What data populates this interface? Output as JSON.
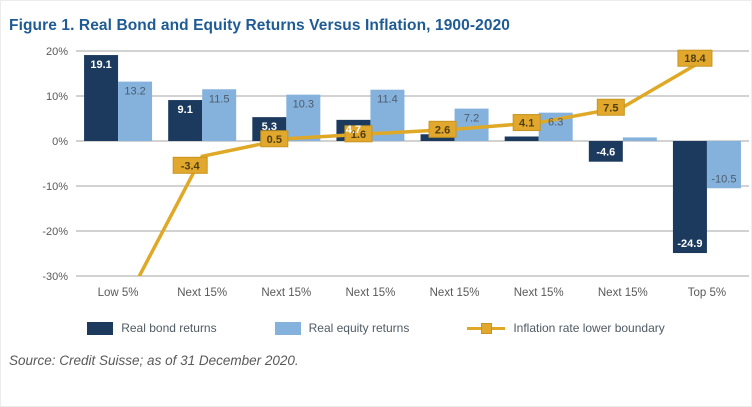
{
  "page": {
    "source_note": "Source: Credit Suisse; as of 31 December 2020.",
    "colors": {
      "title": "#1e5b94",
      "bond": "#1b3a5e",
      "equity": "#85b2dc",
      "inflation_line": "#dfa927",
      "inflation_label_fill": "#e2a82e",
      "inflation_label_border": "#c6951f",
      "inflation_label_text": "#4f3f10",
      "grid": "#a6a6a6",
      "axis_text": "#595959",
      "bar_label_on_dark": "#ffffff",
      "bar_label_on_light": "#4d5c6b"
    }
  },
  "chart_data": {
    "type": "bar",
    "title": "Figure 1. Real Bond and Equity Returns Versus Inflation, 1900-2020",
    "categories": [
      "Low 5%",
      "Next 15%",
      "Next 15%",
      "Next 15%",
      "Next 15%",
      "Next 15%",
      "Next 15%",
      "Top 5%"
    ],
    "series": [
      {
        "name": "Real bond returns",
        "type": "bar",
        "color": "#1b3a5e",
        "values": [
          19.1,
          9.1,
          5.3,
          4.7,
          1.5,
          1.0,
          -4.6,
          -24.9
        ],
        "labels": [
          "19.1",
          "9.1",
          "5.3",
          "4.7",
          "",
          "",
          "-4.6",
          "-24.9"
        ]
      },
      {
        "name": "Real equity returns",
        "type": "bar",
        "color": "#85b2dc",
        "values": [
          13.2,
          11.5,
          10.3,
          11.4,
          7.2,
          6.3,
          0.8,
          -10.5
        ],
        "labels": [
          "13.2",
          "11.5",
          "10.3",
          "11.4",
          "7.2",
          "6.3",
          "",
          "-10.5"
        ]
      },
      {
        "name": "Inflation rate lower boundary",
        "type": "line",
        "color": "#dfa927",
        "values": [
          null,
          -3.4,
          0.5,
          1.6,
          2.6,
          4.1,
          7.5,
          18.4
        ],
        "labels": [
          "",
          "-3.4",
          "0.5",
          "1.6",
          "2.6",
          "4.1",
          "7.5",
          "18.4"
        ],
        "offchart_start_value": -39
      }
    ],
    "ylim": [
      -30,
      20
    ],
    "yticks": [
      20,
      10,
      0,
      -10,
      -20,
      -30
    ],
    "ytick_suffix": "%",
    "grid": true,
    "legend_position": "bottom"
  }
}
